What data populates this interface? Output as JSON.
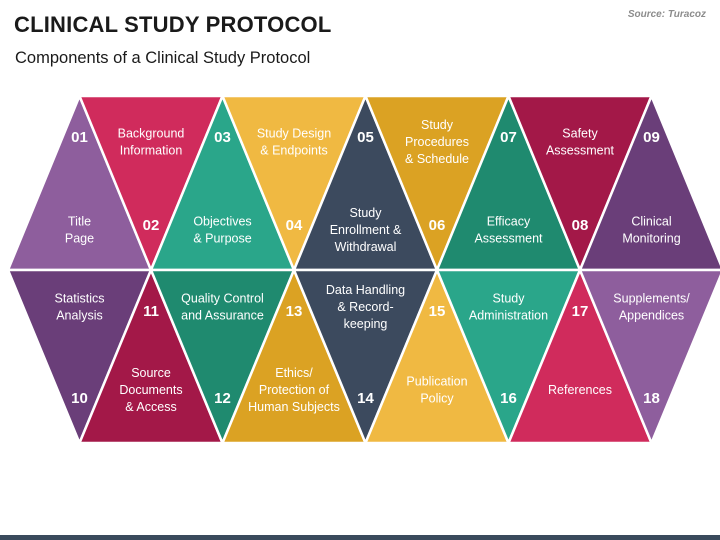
{
  "header": {
    "title": "CLINICAL STUDY PROTOCOL",
    "subtitle": "Components of a Clinical Study Protocol",
    "source": "Source: Turacoz"
  },
  "components": [
    {
      "id": "c01",
      "number": "01",
      "label": [
        "Title",
        "Page"
      ],
      "color": "#8e5e9d"
    },
    {
      "id": "c02",
      "number": "02",
      "label": [
        "Background",
        "Information"
      ],
      "color": "#d02b5c"
    },
    {
      "id": "c03",
      "number": "03",
      "label": [
        "Objectives",
        "& Purpose"
      ],
      "color": "#2aa68a"
    },
    {
      "id": "c04",
      "number": "04",
      "label": [
        "Study Design",
        "& Endpoints"
      ],
      "color": "#f0b942"
    },
    {
      "id": "c05",
      "number": "05",
      "label": [
        "Study",
        "Enrollment &",
        "Withdrawal"
      ],
      "color": "#3c4a5e"
    },
    {
      "id": "c06",
      "number": "06",
      "label": [
        "Study",
        "Procedures",
        "& Schedule"
      ],
      "color": "#dba223"
    },
    {
      "id": "c07",
      "number": "07",
      "label": [
        "Efficacy",
        "Assessment"
      ],
      "color": "#1f8a6f"
    },
    {
      "id": "c08",
      "number": "08",
      "label": [
        "Safety",
        "Assessment"
      ],
      "color": "#a31848"
    },
    {
      "id": "c09",
      "number": "09",
      "label": [
        "Clinical",
        "Monitoring"
      ],
      "color": "#6a3e79"
    },
    {
      "id": "c10",
      "number": "10",
      "label": [
        "Statistics",
        "Analysis"
      ],
      "color": "#6a3e79"
    },
    {
      "id": "c11",
      "number": "11",
      "label": [
        "Source",
        "Documents",
        "& Access"
      ],
      "color": "#a31848"
    },
    {
      "id": "c12",
      "number": "12",
      "label": [
        "Quality Control",
        "and Assurance"
      ],
      "color": "#1f8a6f"
    },
    {
      "id": "c13",
      "number": "13",
      "label": [
        "Ethics/",
        "Protection of",
        "Human Subjects"
      ],
      "color": "#dba223"
    },
    {
      "id": "c14",
      "number": "14",
      "label": [
        "Data Handling",
        "& Record-",
        "keeping"
      ],
      "color": "#3c4a5e"
    },
    {
      "id": "c15",
      "number": "15",
      "label": [
        "Publication",
        "Policy"
      ],
      "color": "#f0b942"
    },
    {
      "id": "c16",
      "number": "16",
      "label": [
        "Study",
        "Administration"
      ],
      "color": "#2aa68a"
    },
    {
      "id": "c17",
      "number": "17",
      "label": [
        "References"
      ],
      "color": "#d02b5c"
    },
    {
      "id": "c18",
      "number": "18",
      "label": [
        "Supplements/",
        "Appendices"
      ],
      "color": "#8e5e9d"
    }
  ]
}
